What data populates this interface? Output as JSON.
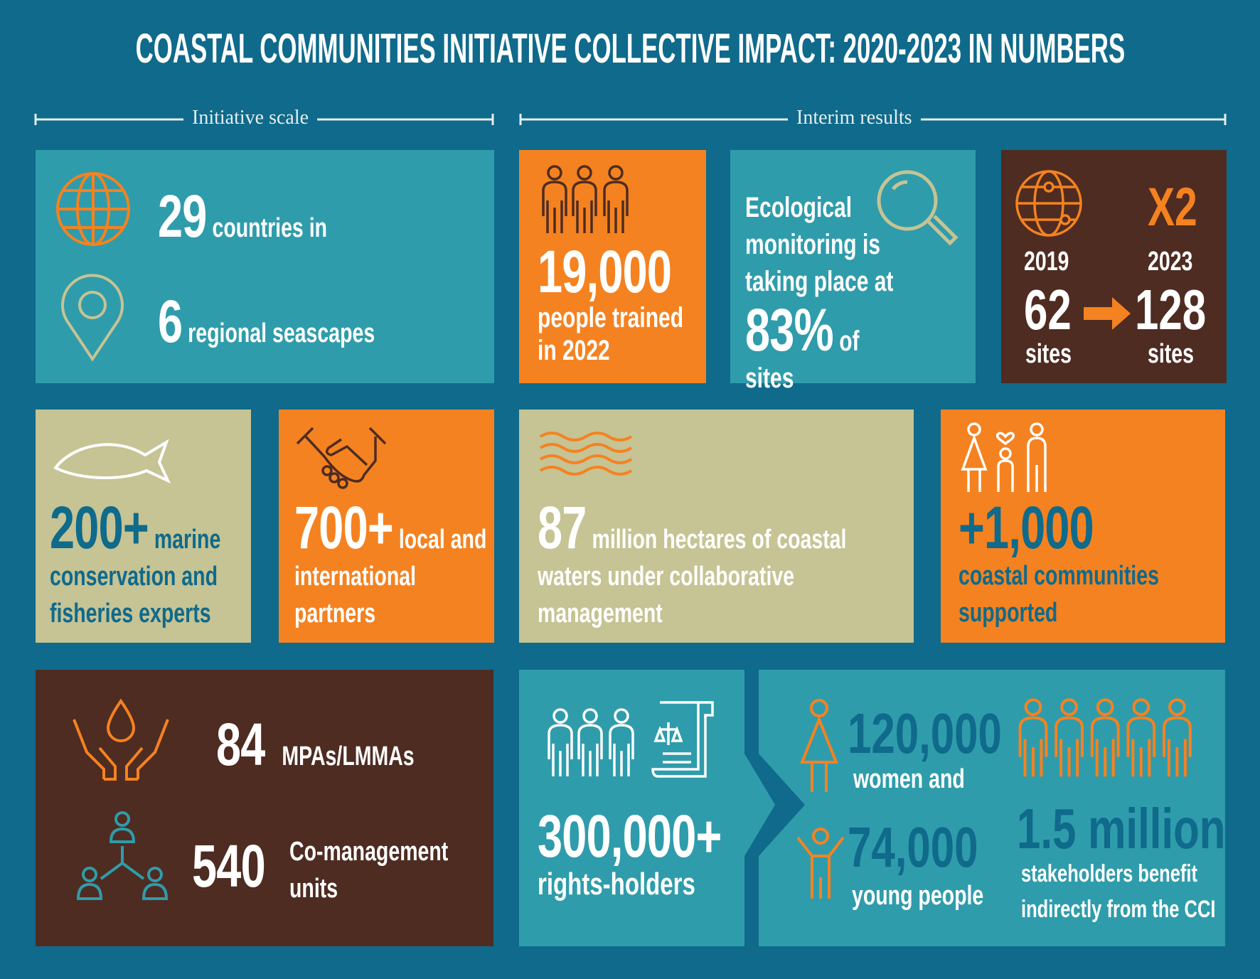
{
  "title": "COASTAL COMMUNITIES INITIATIVE COLLECTIVE IMPACT: 2020-2023 IN NUMBERS",
  "sections": [
    "Initiative scale",
    "Interim results"
  ],
  "tiles": {
    "countries": {
      "number": "29",
      "text": "countries in"
    },
    "seascapes": {
      "number": "6",
      "text": "regional seascapes"
    },
    "trained": {
      "number": "19,000",
      "text": "people trained in 2022"
    },
    "monitoring": {
      "text": "Ecological monitoring is taking place at",
      "number": "83%",
      "suffix": "of sites"
    },
    "sites": {
      "multiplier": "X2",
      "from_year": "2019",
      "from_number": "62",
      "from_unit": "sites",
      "to_year": "2023",
      "to_number": "128",
      "to_unit": "sites"
    },
    "experts": {
      "number": "200+",
      "text": "marine conservation and fisheries experts"
    },
    "partners": {
      "number": "700+",
      "text": "local and international partners"
    },
    "hectares": {
      "number": "87",
      "text": "million hectares of coastal waters under collaborative management"
    },
    "communities": {
      "number": "+1,000",
      "text": "coastal communities supported"
    },
    "mpas": {
      "number": "84",
      "text": "MPAs/LMMAs"
    },
    "units": {
      "number": "540",
      "text": "Co-management units"
    },
    "rights": {
      "number": "300,000+",
      "text": "rights-holders"
    },
    "women": {
      "number": "120,000",
      "text": "women and"
    },
    "youth": {
      "number": "74,000",
      "text": "young people"
    },
    "stakeholders": {
      "number": "1.5 million",
      "text": "stakeholders benefit indirectly from the CCI"
    }
  }
}
